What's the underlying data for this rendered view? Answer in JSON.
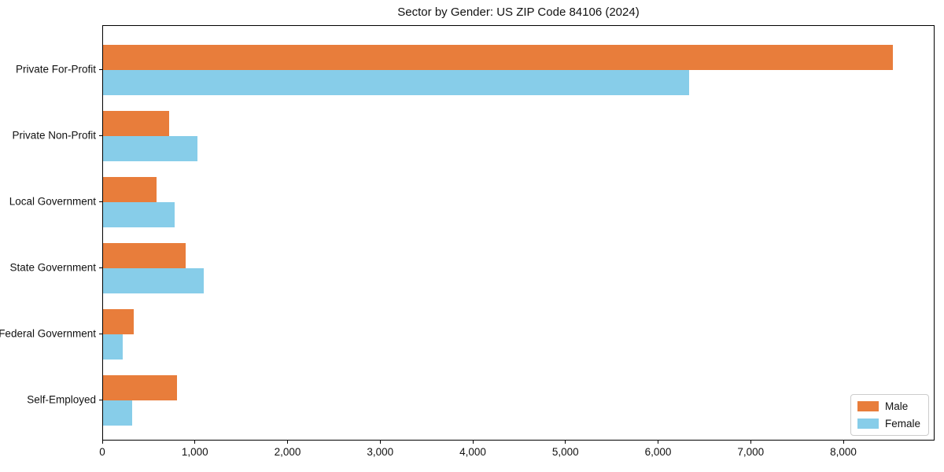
{
  "window": {
    "title": "Sector by Gender: US ZIP Code 84106 (2024)"
  },
  "chart_data": {
    "type": "bar",
    "orientation": "horizontal",
    "title": "Sector by Gender: US ZIP Code 84106 (2024)",
    "categories": [
      "Private For-Profit",
      "Private Non-Profit",
      "Local Government",
      "State Government",
      "Federal Government",
      "Self-Employed"
    ],
    "series": [
      {
        "name": "Male",
        "color": "#e87d3b",
        "values": [
          8530,
          710,
          580,
          890,
          330,
          800
        ]
      },
      {
        "name": "Female",
        "color": "#87cde9",
        "values": [
          6330,
          1020,
          770,
          1090,
          210,
          310
        ]
      }
    ],
    "xlabel": "",
    "ylabel": "",
    "xlim": [
      0,
      8985
    ],
    "xticks": [
      0,
      1000,
      2000,
      3000,
      4000,
      5000,
      6000,
      7000,
      8000
    ],
    "xtick_labels": [
      "0",
      "1,000",
      "2,000",
      "3,000",
      "4,000",
      "5,000",
      "6,000",
      "7,000",
      "8,000"
    ],
    "grid": false,
    "legend": {
      "position": "lower right"
    },
    "colors": {
      "male": "#e87d3b",
      "female": "#87cde9",
      "axis": "#000000",
      "text": "#111111"
    }
  }
}
